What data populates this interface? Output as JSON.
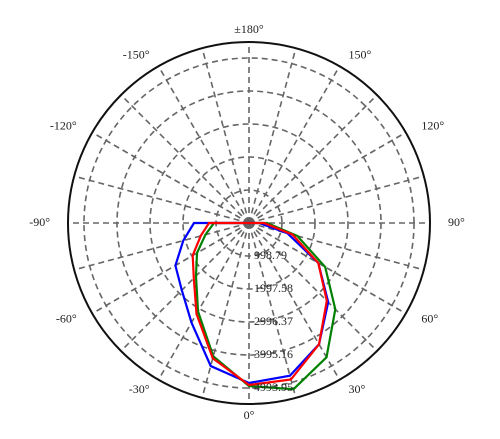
{
  "chart_data": {
    "type": "polar",
    "theta": [
      -90,
      -75,
      -60,
      -45,
      -30,
      -15,
      0,
      15,
      30,
      45,
      60,
      75,
      90
    ],
    "series": [
      {
        "color": "#0000ff",
        "values": [
          1665,
          2058,
          2573,
          2876,
          3481,
          4480,
          4843,
          4783,
          4238,
          3390,
          2422,
          1211,
          303
        ]
      },
      {
        "color": "#008000",
        "values": [
          1059,
          1362,
          1816,
          2270,
          3088,
          4177,
          4934,
          5206,
          4692,
          3693,
          2664,
          1514,
          545
        ]
      },
      {
        "color": "#ff0000",
        "values": [
          1211,
          1514,
          1968,
          2361,
          3178,
          4238,
          4904,
          4904,
          4238,
          3330,
          2422,
          1362,
          454
        ]
      }
    ],
    "rlim": [
      0,
      5478
    ],
    "rticks": [
      998.79,
      1997.58,
      2996.37,
      3995.16,
      4993.95
    ],
    "thetaticks": [
      {
        "value": 180,
        "label": "±180°"
      },
      {
        "value": 150,
        "label": "150°"
      },
      {
        "value": 120,
        "label": "120°"
      },
      {
        "value": 90,
        "label": "90°"
      },
      {
        "value": 60,
        "label": "60°"
      },
      {
        "value": 30,
        "label": "30°"
      },
      {
        "value": 0,
        "label": "0°"
      },
      {
        "value": -30,
        "label": "-30°"
      },
      {
        "value": -60,
        "label": "-60°"
      },
      {
        "value": -90,
        "label": "-90°"
      },
      {
        "value": -120,
        "label": "-120°"
      },
      {
        "value": -150,
        "label": "-150°"
      }
    ],
    "theta_grid": [
      0,
      15,
      30,
      45,
      60,
      75,
      90,
      105,
      120,
      135,
      150,
      165,
      180,
      195,
      210,
      225,
      240,
      255,
      270,
      285,
      300,
      315,
      330,
      345
    ],
    "grid": true
  }
}
